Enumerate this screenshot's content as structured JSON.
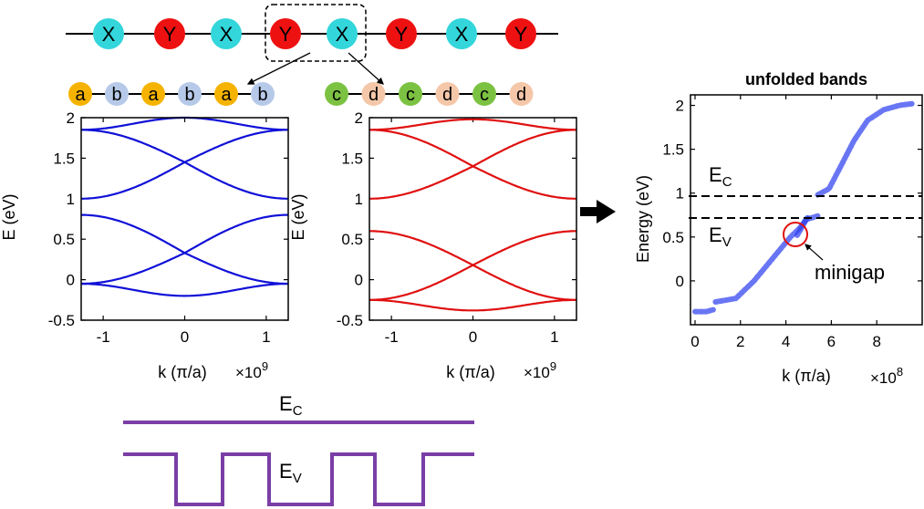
{
  "chain": {
    "atoms": [
      "X",
      "Y",
      "X",
      "Y",
      "X",
      "Y",
      "X",
      "Y"
    ],
    "colors": {
      "X": "#33d6db",
      "Y": "#ee1111"
    }
  },
  "subchains": {
    "left": {
      "labels": [
        "a",
        "b",
        "a",
        "b",
        "a",
        "b"
      ],
      "colors": {
        "a": "#f5b300",
        "b": "#b7c9e8"
      }
    },
    "right": {
      "labels": [
        "c",
        "d",
        "c",
        "d",
        "c",
        "d"
      ],
      "colors": {
        "c": "#7cc242",
        "d": "#f5c7a9"
      }
    }
  },
  "plot_left": {
    "ylabel": "E (eV)",
    "xlabel": "k (π/a)",
    "multiplier": "×10",
    "multiplier_exp": "9",
    "xticks": [
      "-1",
      "0",
      "1"
    ],
    "yticks": [
      "-0.5",
      "0",
      "0.5",
      "1",
      "1.5",
      "2"
    ],
    "color": "#1010d8"
  },
  "plot_right": {
    "ylabel": "E (eV)",
    "xlabel": "k (π/a)",
    "multiplier": "×10",
    "multiplier_exp": "9",
    "xticks": [
      "-1",
      "0",
      "1"
    ],
    "yticks": [
      "-0.5",
      "0",
      "0.5",
      "1",
      "1.5",
      "2"
    ],
    "color": "#e01010"
  },
  "plot_unfolded": {
    "title": "unfolded bands",
    "ylabel": "Energy (eV)",
    "xlabel": "k (π/a)",
    "multiplier": "×10",
    "multiplier_exp": "8",
    "xticks": [
      "0",
      "2",
      "4",
      "6",
      "8"
    ],
    "yticks": [
      "0",
      "0.5",
      "1",
      "1.5",
      "2"
    ],
    "ec_label": "E",
    "ec_sub": "C",
    "ev_label": "E",
    "ev_sub": "V",
    "minigap": "minigap",
    "color": "#2a3cf0"
  },
  "band_diagram": {
    "ec_label": "E",
    "ec_sub": "C",
    "ev_label": "E",
    "ev_sub": "V",
    "color": "#7a3ea6"
  }
}
